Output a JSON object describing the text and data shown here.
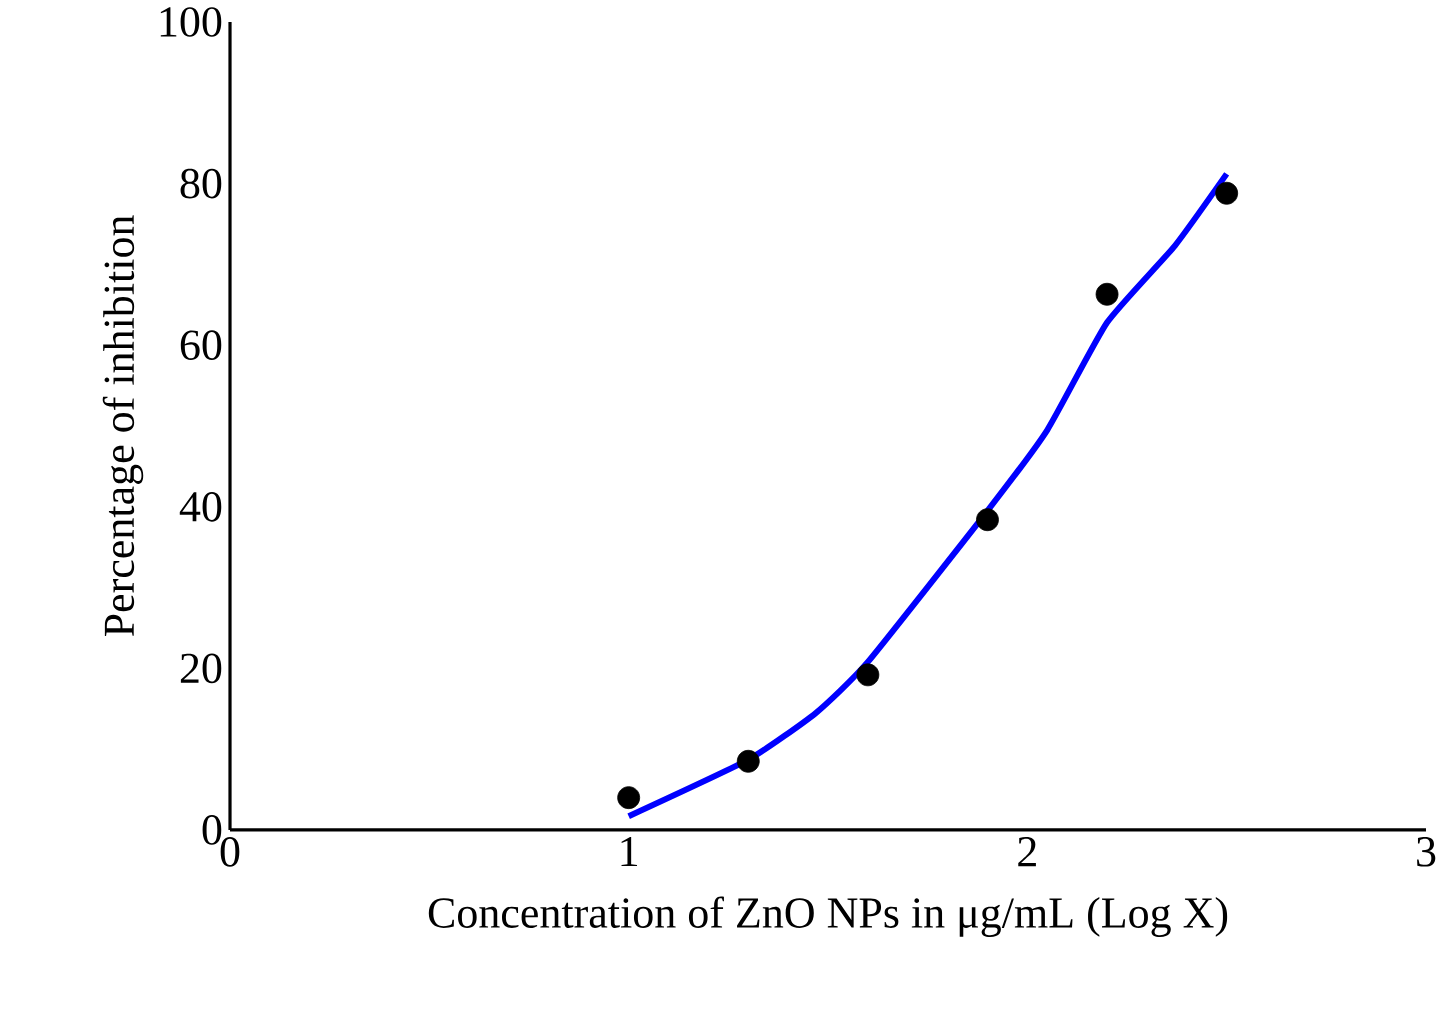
{
  "chart_data": {
    "type": "scatter",
    "xlabel": "Concentration of ZnO NPs in μg/mL (Log X)",
    "ylabel": "Percentage of inhibition",
    "xlim": [
      0,
      3
    ],
    "ylim": [
      0,
      100
    ],
    "xticks": [
      0,
      1,
      2,
      3
    ],
    "yticks": [
      0,
      20,
      40,
      60,
      80,
      100
    ],
    "grid": false,
    "series": [
      {
        "color": "#000000",
        "marker": "circle",
        "x": [
          1,
          1.3,
          1.6,
          1.9,
          2.2,
          2.5
        ],
        "values": [
          4.0,
          8.5,
          19.2,
          38.4,
          66.3,
          78.8
        ]
      },
      {
        "type": "line",
        "color": "#0000ff",
        "marker": "none",
        "line_style": "solid",
        "x": [
          1,
          1.3,
          1.47,
          1.6,
          1.9,
          2.05,
          2.2,
          2.37,
          2.5
        ],
        "values": [
          1.7,
          8.7,
          14.5,
          20.8,
          39.5,
          49.5,
          62.8,
          72.3,
          81.2
        ]
      }
    ]
  }
}
